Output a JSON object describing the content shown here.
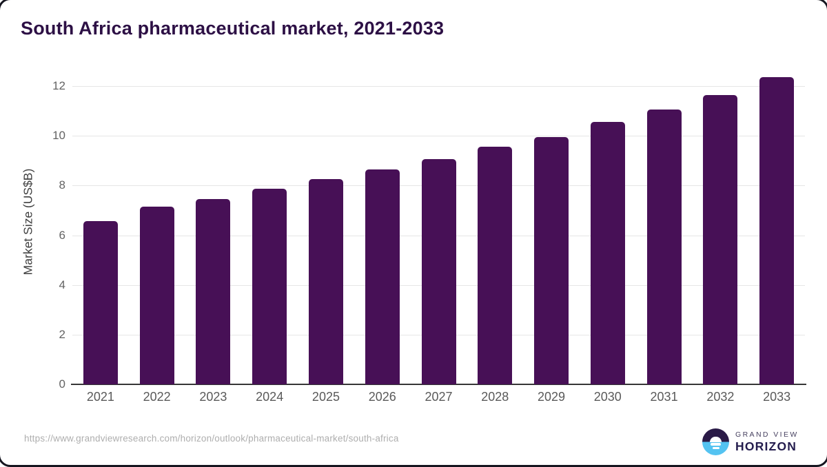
{
  "title": "South Africa pharmaceutical market, 2021-2033",
  "source_url": "https://www.grandviewresearch.com/horizon/outlook/pharmaceutical-market/south-africa",
  "logo": {
    "line1": "GRAND VIEW",
    "line2": "HORIZON",
    "icon": "horizon-sun-circle"
  },
  "colors": {
    "bar": "#471056",
    "title": "#2d1045",
    "gridline": "#e6e6e6",
    "axis_line": "#363636",
    "tick_label": "#636363",
    "x_label": "#595959",
    "y_axis_title": "#3f3f3f",
    "url_text": "#aeaeae",
    "logo_dark": "#2a1a47",
    "logo_blue": "#54c3f1",
    "logo_text": "#241d4e"
  },
  "chart_data": {
    "type": "bar",
    "title": "South Africa pharmaceutical market, 2021-2033",
    "categories": [
      "2021",
      "2022",
      "2023",
      "2024",
      "2025",
      "2026",
      "2027",
      "2028",
      "2029",
      "2030",
      "2031",
      "2032",
      "2033"
    ],
    "values": [
      6.58,
      7.15,
      7.47,
      7.88,
      8.27,
      8.65,
      9.06,
      9.56,
      9.96,
      10.57,
      11.07,
      11.65,
      12.37
    ],
    "xlabel": "",
    "ylabel": "Market Size (US$B)",
    "ylim": [
      0,
      12.7
    ],
    "yticks": [
      0,
      2,
      4,
      6,
      8,
      10,
      12
    ],
    "grid": true,
    "legend": false,
    "bar_color": "#471056"
  }
}
